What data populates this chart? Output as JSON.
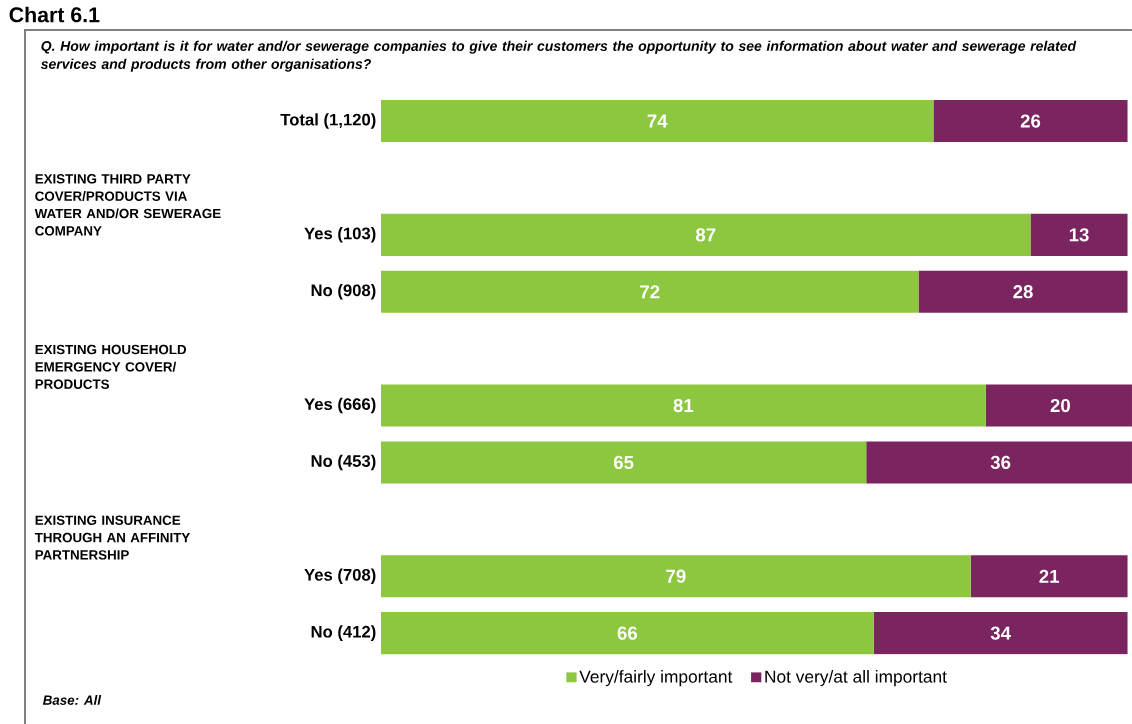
{
  "chart_data": {
    "type": "bar",
    "orientation": "horizontal",
    "stacked": true,
    "title": "Chart 6.1",
    "subtitle": "Q. How important is it for water and/or sewerage companies to give their customers the opportunity to see information about water and sewerage related services and products from other organisations?",
    "categories": [
      "Total (1,120)",
      null,
      "Yes (103)",
      "No (908)",
      null,
      "Yes (666)",
      "No (453)",
      null,
      "Yes (708)",
      "No (412)"
    ],
    "series": [
      {
        "name": "Very/fairly important",
        "color": "#8dc63f",
        "values": [
          74,
          null,
          87,
          72,
          null,
          81,
          65,
          null,
          79,
          66
        ]
      },
      {
        "name": "Not very/at all important",
        "color": "#7b2560",
        "values": [
          26,
          null,
          13,
          28,
          null,
          20,
          36,
          null,
          21,
          34
        ]
      }
    ],
    "xlim": [
      0,
      101
    ],
    "data_labels": true,
    "legend": "bottom",
    "tick_labels": "y",
    "annotations": [
      "EXISTING THIRD PARTY COVER/PRODUCTS VIA WATER AND/OR SEWERAGE COMPANY",
      "EXISTING HOUSEHOLD EMERGENCY COVER/ PRODUCTS",
      "EXISTING INSURANCE THROUGH AN AFFINITY PARTNERSHIP",
      "Base: All"
    ]
  }
}
